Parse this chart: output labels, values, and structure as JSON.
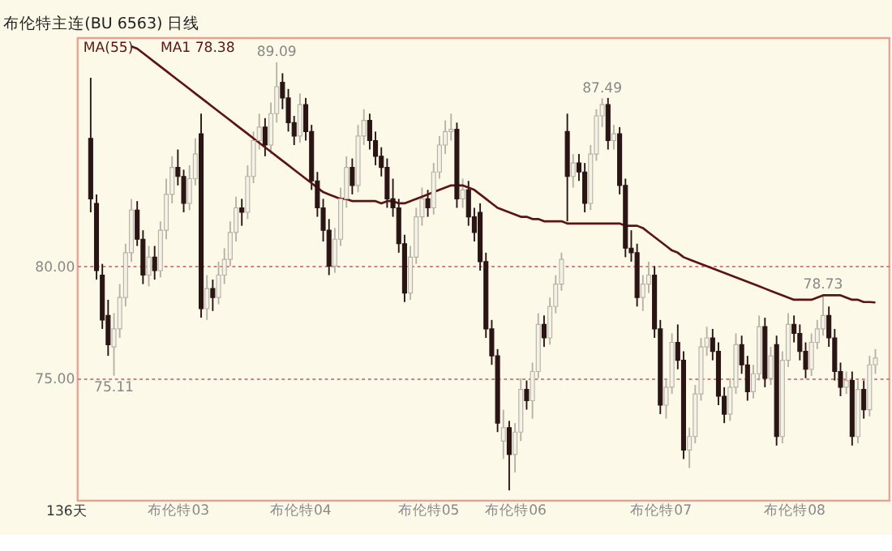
{
  "chart_data": {
    "type": "candlestick",
    "title": "布伦特主连(BU 6563)  日线",
    "categories": [
      null,
      null,
      null,
      null,
      null,
      null,
      null,
      null,
      null,
      null,
      null,
      null,
      null,
      null,
      null,
      "布伦特03",
      null,
      null,
      null,
      null,
      null,
      null,
      null,
      null,
      null,
      null,
      null,
      null,
      null,
      null,
      null,
      null,
      null,
      null,
      null,
      null,
      "布伦特04",
      null,
      null,
      null,
      null,
      null,
      null,
      null,
      null,
      null,
      null,
      null,
      null,
      null,
      null,
      null,
      null,
      null,
      null,
      null,
      null,
      null,
      "布伦特05",
      null,
      null,
      null,
      null,
      null,
      null,
      null,
      null,
      null,
      null,
      null,
      null,
      null,
      null,
      "布伦特06",
      null,
      null,
      null,
      null,
      null,
      null,
      null,
      null,
      null,
      null,
      null,
      null,
      null,
      null,
      null,
      null,
      null,
      null,
      null,
      null,
      null,
      null,
      null,
      null,
      "布伦特07",
      null,
      null,
      null,
      null,
      null,
      null,
      null,
      null,
      null,
      null,
      null,
      null,
      null,
      null,
      null,
      null,
      null,
      null,
      null,
      null,
      null,
      null,
      "布伦特08",
      null,
      null,
      null,
      null,
      null,
      null,
      null,
      null,
      null,
      null,
      null,
      null,
      null,
      null
    ],
    "ohlc": [
      [
        85.7,
        88.4,
        82.4,
        83.0
      ],
      [
        82.8,
        83.2,
        79.4,
        79.8
      ],
      [
        79.6,
        80.1,
        77.2,
        77.6
      ],
      [
        77.8,
        78.5,
        76.0,
        76.5
      ],
      [
        76.4,
        77.9,
        75.11,
        77.2
      ],
      [
        77.2,
        79.2,
        76.8,
        78.6
      ],
      [
        78.6,
        81.0,
        78.2,
        80.6
      ],
      [
        80.6,
        83.0,
        80.2,
        82.5
      ],
      [
        82.5,
        82.9,
        80.9,
        81.2
      ],
      [
        81.2,
        81.6,
        79.2,
        79.6
      ],
      [
        79.6,
        80.9,
        79.1,
        80.4
      ],
      [
        80.4,
        80.9,
        79.4,
        79.8
      ],
      [
        79.8,
        82.0,
        79.5,
        81.6
      ],
      [
        81.6,
        83.9,
        81.2,
        83.2
      ],
      [
        83.2,
        84.9,
        82.8,
        84.4
      ],
      [
        84.4,
        85.2,
        83.6,
        84.0
      ],
      [
        84.0,
        84.3,
        82.4,
        82.8
      ],
      [
        82.8,
        84.5,
        82.5,
        83.9
      ],
      [
        83.9,
        85.7,
        83.6,
        85.0
      ],
      [
        85.9,
        86.8,
        77.7,
        78.1
      ],
      [
        78.1,
        79.6,
        77.6,
        79.0
      ],
      [
        79.0,
        79.4,
        78.0,
        78.6
      ],
      [
        78.6,
        80.2,
        78.3,
        79.6
      ],
      [
        79.6,
        80.8,
        79.2,
        80.3
      ],
      [
        80.3,
        82.0,
        80.0,
        81.5
      ],
      [
        81.5,
        83.1,
        81.1,
        82.6
      ],
      [
        82.6,
        83.0,
        81.8,
        82.4
      ],
      [
        82.4,
        84.5,
        82.1,
        84.0
      ],
      [
        84.0,
        86.0,
        83.7,
        85.6
      ],
      [
        85.6,
        86.8,
        85.2,
        86.2
      ],
      [
        86.2,
        86.6,
        84.9,
        85.4
      ],
      [
        85.4,
        87.3,
        85.0,
        86.8
      ],
      [
        86.8,
        89.09,
        86.4,
        88.0
      ],
      [
        88.2,
        88.6,
        87.0,
        87.5
      ],
      [
        87.5,
        87.9,
        86.0,
        86.4
      ],
      [
        86.4,
        86.7,
        85.4,
        85.8
      ],
      [
        85.8,
        87.7,
        85.5,
        87.2
      ],
      [
        87.2,
        87.5,
        85.6,
        86.0
      ],
      [
        86.0,
        86.3,
        83.4,
        83.8
      ],
      [
        83.8,
        84.2,
        82.2,
        82.6
      ],
      [
        82.6,
        83.0,
        81.1,
        81.6
      ],
      [
        81.6,
        82.1,
        79.6,
        80.0
      ],
      [
        80.0,
        81.7,
        79.7,
        81.2
      ],
      [
        81.2,
        83.5,
        80.9,
        83.0
      ],
      [
        83.0,
        84.9,
        82.6,
        84.4
      ],
      [
        84.4,
        84.8,
        83.2,
        83.6
      ],
      [
        83.6,
        86.3,
        83.3,
        85.8
      ],
      [
        85.8,
        87.0,
        85.4,
        86.5
      ],
      [
        86.5,
        86.8,
        85.2,
        85.6
      ],
      [
        85.6,
        86.0,
        84.5,
        84.9
      ],
      [
        84.9,
        85.3,
        84.0,
        84.4
      ],
      [
        84.4,
        84.8,
        82.6,
        83.0
      ],
      [
        83.0,
        83.9,
        82.2,
        82.6
      ],
      [
        82.6,
        83.0,
        80.6,
        81.0
      ],
      [
        81.0,
        81.4,
        78.4,
        78.8
      ],
      [
        78.8,
        80.9,
        78.5,
        80.4
      ],
      [
        80.4,
        82.6,
        80.1,
        82.2
      ],
      [
        82.2,
        83.5,
        81.8,
        83.0
      ],
      [
        83.0,
        83.4,
        82.2,
        82.6
      ],
      [
        82.6,
        84.6,
        82.3,
        84.2
      ],
      [
        84.2,
        85.8,
        83.9,
        85.4
      ],
      [
        85.4,
        86.5,
        85.0,
        86.0
      ],
      [
        86.0,
        86.8,
        85.6,
        86.1
      ],
      [
        86.1,
        86.4,
        82.6,
        83.0
      ],
      [
        83.0,
        83.9,
        82.6,
        83.4
      ],
      [
        83.4,
        83.8,
        81.8,
        82.2
      ],
      [
        82.2,
        82.6,
        81.1,
        81.5
      ],
      [
        82.4,
        82.8,
        79.8,
        80.2
      ],
      [
        80.2,
        80.6,
        76.8,
        77.2
      ],
      [
        77.2,
        77.6,
        75.6,
        76.0
      ],
      [
        76.0,
        76.3,
        72.6,
        73.0
      ],
      [
        72.2,
        73.6,
        71.4,
        72.8
      ],
      [
        72.8,
        73.1,
        70.0,
        71.6
      ],
      [
        71.6,
        73.0,
        70.8,
        72.6
      ],
      [
        72.6,
        75.0,
        72.2,
        74.5
      ],
      [
        74.5,
        74.9,
        73.6,
        74.0
      ],
      [
        74.0,
        75.7,
        73.2,
        75.3
      ],
      [
        75.3,
        77.9,
        75.0,
        77.4
      ],
      [
        77.4,
        77.8,
        76.4,
        76.8
      ],
      [
        76.8,
        78.6,
        76.5,
        78.2
      ],
      [
        78.2,
        79.6,
        77.9,
        79.2
      ],
      [
        79.2,
        80.6,
        78.9,
        80.3
      ],
      [
        86.0,
        86.8,
        82.0,
        84.0
      ],
      [
        84.0,
        85.0,
        83.5,
        84.6
      ],
      [
        84.6,
        85.0,
        83.8,
        84.2
      ],
      [
        84.2,
        84.6,
        82.4,
        82.8
      ],
      [
        82.8,
        85.4,
        82.5,
        85.0
      ],
      [
        85.0,
        87.0,
        84.7,
        86.7
      ],
      [
        86.7,
        87.49,
        86.2,
        87.2
      ],
      [
        87.2,
        87.5,
        85.2,
        85.6
      ],
      [
        85.6,
        86.3,
        85.2,
        85.9
      ],
      [
        85.9,
        86.2,
        83.2,
        83.6
      ],
      [
        83.6,
        83.9,
        80.4,
        80.8
      ],
      [
        80.8,
        81.6,
        80.2,
        80.6
      ],
      [
        80.6,
        81.0,
        78.2,
        78.6
      ],
      [
        78.6,
        79.6,
        78.0,
        79.2
      ],
      [
        79.2,
        80.2,
        78.8,
        79.6
      ],
      [
        79.6,
        80.0,
        76.8,
        77.2
      ],
      [
        77.2,
        77.6,
        73.4,
        73.8
      ],
      [
        73.8,
        75.0,
        73.2,
        74.6
      ],
      [
        74.6,
        77.0,
        74.3,
        76.6
      ],
      [
        76.6,
        77.4,
        75.4,
        75.8
      ],
      [
        75.8,
        76.2,
        71.4,
        71.8
      ],
      [
        71.8,
        72.8,
        71.0,
        72.4
      ],
      [
        72.4,
        74.7,
        72.1,
        74.3
      ],
      [
        74.3,
        76.8,
        74.0,
        76.4
      ],
      [
        76.4,
        77.3,
        76.0,
        76.8
      ],
      [
        76.8,
        77.2,
        75.8,
        76.2
      ],
      [
        76.2,
        76.6,
        73.8,
        74.2
      ],
      [
        74.2,
        74.6,
        73.0,
        73.4
      ],
      [
        73.4,
        75.0,
        73.1,
        74.6
      ],
      [
        74.6,
        77.0,
        74.3,
        76.5
      ],
      [
        76.5,
        76.9,
        75.2,
        75.6
      ],
      [
        75.6,
        76.0,
        74.0,
        74.4
      ],
      [
        74.4,
        75.6,
        74.1,
        75.2
      ],
      [
        75.2,
        77.8,
        74.9,
        77.3
      ],
      [
        77.3,
        77.7,
        74.6,
        75.0
      ],
      [
        75.0,
        76.4,
        74.7,
        76.0
      ],
      [
        76.5,
        76.9,
        72.0,
        72.4
      ],
      [
        72.4,
        76.2,
        72.1,
        75.8
      ],
      [
        75.8,
        77.9,
        75.5,
        77.4
      ],
      [
        77.4,
        77.8,
        76.6,
        77.0
      ],
      [
        77.0,
        77.4,
        75.8,
        76.2
      ],
      [
        76.2,
        76.6,
        75.0,
        75.4
      ],
      [
        75.4,
        77.0,
        75.1,
        76.6
      ],
      [
        76.6,
        77.6,
        76.3,
        77.2
      ],
      [
        77.2,
        78.73,
        76.9,
        77.8
      ],
      [
        77.8,
        78.2,
        76.4,
        76.8
      ],
      [
        76.8,
        77.2,
        74.9,
        75.3
      ],
      [
        75.3,
        75.7,
        74.2,
        74.6
      ],
      [
        74.6,
        75.3,
        74.3,
        74.9
      ],
      [
        74.9,
        75.3,
        72.0,
        72.4
      ],
      [
        72.4,
        74.9,
        72.1,
        74.5
      ],
      [
        74.5,
        74.9,
        73.2,
        73.6
      ],
      [
        73.6,
        76.0,
        73.3,
        75.6
      ],
      [
        75.6,
        76.3,
        75.2,
        75.9
      ]
    ],
    "series": [
      {
        "type": "line",
        "name": "MA1 78.38",
        "color": "#5a1414",
        "values": [
          null,
          null,
          null,
          null,
          null,
          null,
          null,
          89.8,
          89.7,
          89.5,
          89.3,
          89.1,
          88.9,
          88.7,
          88.5,
          88.3,
          88.1,
          87.9,
          87.7,
          87.5,
          87.3,
          87.1,
          86.9,
          86.7,
          86.5,
          86.3,
          86.1,
          85.9,
          85.7,
          85.5,
          85.3,
          85.1,
          84.9,
          84.7,
          84.5,
          84.3,
          84.1,
          83.9,
          83.7,
          83.5,
          83.3,
          83.2,
          83.1,
          83.0,
          83.0,
          82.9,
          82.9,
          82.9,
          82.9,
          82.9,
          82.8,
          82.9,
          82.9,
          82.8,
          82.8,
          82.9,
          83.0,
          83.1,
          83.2,
          83.3,
          83.4,
          83.5,
          83.6,
          83.6,
          83.6,
          83.5,
          83.4,
          83.2,
          83.0,
          82.8,
          82.6,
          82.5,
          82.4,
          82.3,
          82.2,
          82.2,
          82.1,
          82.1,
          82.0,
          82.0,
          82.0,
          82.0,
          81.9,
          81.9,
          81.9,
          81.9,
          81.9,
          81.9,
          81.9,
          81.9,
          81.9,
          81.9,
          81.8,
          81.8,
          81.8,
          81.7,
          81.5,
          81.3,
          81.1,
          80.9,
          80.7,
          80.6,
          80.4,
          80.3,
          80.2,
          80.1,
          80.0,
          79.9,
          79.8,
          79.7,
          79.6,
          79.5,
          79.4,
          79.3,
          79.2,
          79.1,
          79.0,
          78.9,
          78.8,
          78.7,
          78.6,
          78.5,
          78.5,
          78.5,
          78.5,
          78.6,
          78.7,
          78.7,
          78.7,
          78.7,
          78.6,
          78.5,
          78.5,
          78.4,
          78.4,
          78.38
        ]
      }
    ],
    "ylim": [
      69.56,
      90.19
    ],
    "yticks": [
      {
        "value": 75,
        "label": "75.00"
      },
      {
        "value": 80,
        "label": "80.00"
      }
    ],
    "grid": "y",
    "legend": "top left",
    "annotations": [
      "MA(55)",
      "136天",
      {
        "text": "89.09",
        "y": 89.09
      },
      {
        "text": "87.49",
        "y": 87.49
      },
      {
        "text": "78.73",
        "y": 78.73
      },
      {
        "text": "75.11",
        "y": 75.11
      }
    ]
  }
}
